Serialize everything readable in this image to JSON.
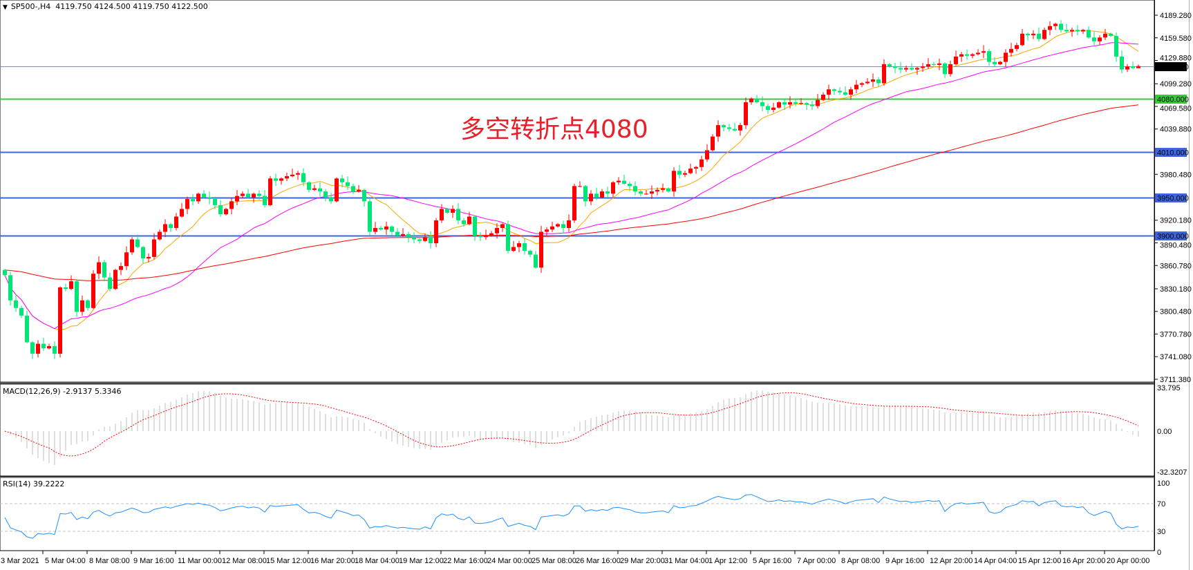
{
  "header": {
    "symbol": "SP500-,H4",
    "ohlc": "4119.750 4124.500 4119.750 4122.500",
    "menu_icon": "triangle-down-icon"
  },
  "annotation": {
    "text": "多空转折点4080",
    "color": "#e8202a"
  },
  "macd": {
    "label": "MACD(12,26,9) -2.9137 5.3346",
    "ticks": [
      "33.795",
      "0.00",
      "-32.3207"
    ],
    "range": [
      -32.3207,
      33.795
    ],
    "histogram_color": "#c0c0c0",
    "signal_color": "#ff0000"
  },
  "rsi": {
    "label": "RSI(14) 39.2222",
    "ticks": [
      "100",
      "70",
      "30",
      "0"
    ],
    "levels": [
      30,
      70
    ],
    "color": "#1e90ff"
  },
  "chart_data": {
    "type": "candlestick",
    "symbol": "SP500-",
    "timeframe": "H4",
    "ylim": [
      3711.38,
      4189.28
    ],
    "y_ticks": [
      "4189.280",
      "4159.580",
      "4129.880",
      "4099.280",
      "4069.580",
      "4039.880",
      "3980.480",
      "3920.180",
      "3890.480",
      "3860.780",
      "3830.180",
      "3800.480",
      "3770.780",
      "3741.080",
      "3711.380"
    ],
    "x_ticks": [
      "3 Mar 2021",
      "5 Mar 04:00",
      "8 Mar 08:00",
      "9 Mar 16:00",
      "11 Mar 00:00",
      "12 Mar 08:00",
      "15 Mar 12:00",
      "16 Mar 20:00",
      "18 Mar 04:00",
      "19 Mar 12:00",
      "22 Mar 16:00",
      "24 Mar 00:00",
      "25 Mar 08:00",
      "26 Mar 16:00",
      "29 Mar 20:00",
      "31 Mar 04:00",
      "1 Apr 12:00",
      "5 Apr 16:00",
      "7 Apr 00:00",
      "8 Apr 08:00",
      "9 Apr 16:00",
      "12 Apr 20:00",
      "14 Apr 04:00",
      "15 Apr 12:00",
      "16 Apr 20:00",
      "20 Apr 00:00"
    ],
    "up_color": "#ff0000",
    "down_color": "#00e676",
    "first_open": 3855,
    "closes": [
      3848,
      3815,
      3805,
      3795,
      3760,
      3745,
      3758,
      3752,
      3755,
      3745,
      3832,
      3830,
      3840,
      3800,
      3815,
      3805,
      3850,
      3865,
      3845,
      3830,
      3855,
      3860,
      3878,
      3895,
      3885,
      3870,
      3872,
      3895,
      3905,
      3915,
      3910,
      3925,
      3935,
      3948,
      3945,
      3955,
      3950,
      3948,
      3940,
      3928,
      3935,
      3945,
      3952,
      3955,
      3950,
      3955,
      3952,
      3940,
      3975,
      3972,
      3975,
      3978,
      3980,
      3982,
      3970,
      3960,
      3962,
      3958,
      3950,
      3945,
      3975,
      3970,
      3965,
      3958,
      3960,
      3945,
      3905,
      3910,
      3908,
      3912,
      3905,
      3900,
      3902,
      3898,
      3895,
      3893,
      3898,
      3890,
      3920,
      3935,
      3930,
      3935,
      3920,
      3915,
      3925,
      3900,
      3898,
      3900,
      3903,
      3910,
      3915,
      3880,
      3885,
      3890,
      3880,
      3875,
      3858,
      3905,
      3908,
      3912,
      3915,
      3910,
      3920,
      3965,
      3965,
      3945,
      3955,
      3950,
      3958,
      3955,
      3970,
      3972,
      3968,
      3965,
      3958,
      3955,
      3955,
      3958,
      3960,
      3962,
      3958,
      3985,
      3980,
      3982,
      3988,
      3990,
      4000,
      4012,
      4030,
      4045,
      4042,
      4040,
      4038,
      4045,
      4075,
      4080,
      4075,
      4070,
      4065,
      4068,
      4075,
      4072,
      4075,
      4073,
      4074,
      4072,
      4070,
      4078,
      4085,
      4092,
      4090,
      4088,
      4085,
      4092,
      4098,
      4100,
      4102,
      4105,
      4100,
      4125,
      4122,
      4120,
      4118,
      4120,
      4118,
      4120,
      4122,
      4125,
      4124,
      4126,
      4112,
      4125,
      4135,
      4138,
      4136,
      4138,
      4140,
      4142,
      4128,
      4125,
      4128,
      4140,
      4145,
      4150,
      4165,
      4163,
      4165,
      4158,
      4170,
      4175,
      4178,
      4170,
      4168,
      4170,
      4168,
      4170,
      4160,
      4155,
      4160,
      4165,
      4162,
      4135,
      4118,
      4122,
      4120,
      4122.5
    ],
    "last_bar": {
      "open": 4119.75,
      "high": 4124.5,
      "low": 4119.75,
      "close": 4122.5
    },
    "moving_average_colors": [
      "#ffa500",
      "#ff00ff",
      "#ff0000"
    ],
    "horizontal_lines": [
      {
        "price": 4122.5,
        "label": "4122.500",
        "color": "#8090a0",
        "label_bg": "#000000"
      },
      {
        "price": 4080,
        "label": "4080.000",
        "color": "#32cd32",
        "label_bg": "#32cd32"
      },
      {
        "price": 4010,
        "label": "4010.000",
        "color": "#3c64dc",
        "label_bg": "#3c64dc"
      },
      {
        "price": 3950,
        "label": "3950.000",
        "color": "#3c64dc",
        "label_bg": "#3c64dc"
      },
      {
        "price": 3900,
        "label": "3900.000",
        "color": "#3c64dc",
        "label_bg": "#3c64dc"
      }
    ]
  }
}
